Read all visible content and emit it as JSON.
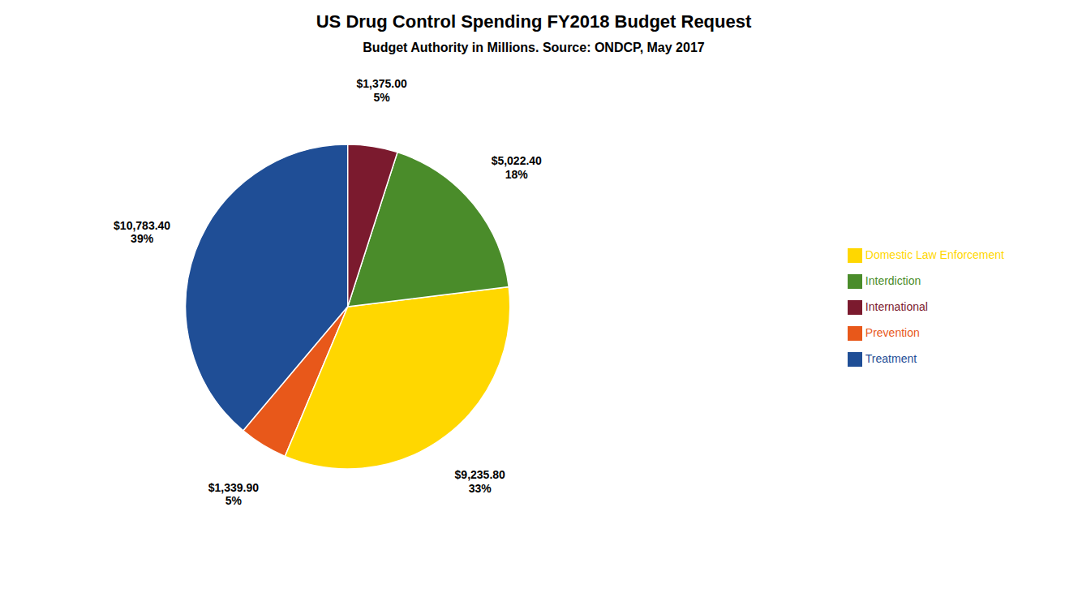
{
  "chart_data": {
    "type": "pie",
    "title": "US Drug Control Spending FY2018 Budget Request",
    "subtitle": "Budget Authority in Millions. Source: ONDCP, May 2017",
    "categories": [
      "Treatment",
      "Prevention",
      "Domestic Law Enforcement",
      "Interdiction",
      "International"
    ],
    "values": [
      10783.4,
      1339.9,
      9235.8,
      5022.4,
      1375.0
    ],
    "value_labels": [
      "$10,783.40",
      "$1,339.90",
      "$9,235.80",
      "$5,022.40",
      "$1,375.00"
    ],
    "percentages": [
      {
        "value": 39,
        "label": "39%"
      },
      {
        "value": 5,
        "label": "5%"
      },
      {
        "value": 33,
        "label": "33%"
      },
      {
        "value": 18,
        "label": "18%"
      },
      {
        "value": 5,
        "label": "5%"
      }
    ],
    "colors": [
      "#1F4E96",
      "#E8581A",
      "#FFD700",
      "#4A8C2A",
      "#7B1A2E"
    ],
    "data_labels": true,
    "legend": "right"
  }
}
